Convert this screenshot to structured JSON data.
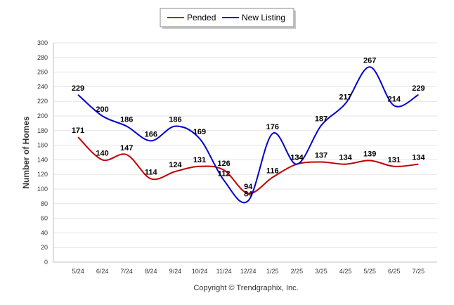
{
  "chart_data": {
    "type": "line",
    "title": "",
    "xlabel": "",
    "ylabel": "Number of Homes",
    "ylim": [
      0,
      300
    ],
    "ytick_step": 20,
    "grid": true,
    "legend_position": "top-center",
    "categories": [
      "5/24",
      "6/24",
      "7/24",
      "8/24",
      "9/24",
      "10/24",
      "11/24",
      "12/24",
      "1/25",
      "2/25",
      "3/25",
      "4/25",
      "5/25",
      "6/25",
      "7/25"
    ],
    "series": [
      {
        "name": "Pended",
        "color": "#c00000",
        "values": [
          171,
          140,
          147,
          114,
          124,
          131,
          126,
          94,
          116,
          134,
          137,
          134,
          139,
          131,
          134
        ]
      },
      {
        "name": "New Listing",
        "color": "#0000cc",
        "values": [
          229,
          200,
          186,
          166,
          186,
          169,
          112,
          84,
          176,
          134,
          187,
          217,
          267,
          214,
          229
        ]
      }
    ]
  },
  "footer": {
    "copyright": "Copyright © Trendgraphix, Inc."
  }
}
